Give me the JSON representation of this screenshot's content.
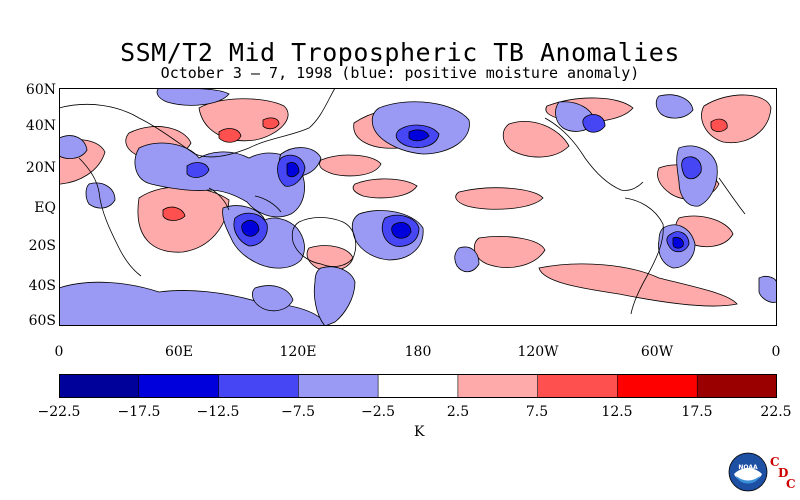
{
  "title": "SSM/T2 Mid Tropospheric TB Anomalies",
  "subtitle": "October 3 – 7, 1998 (blue: positive moisture anomaly)",
  "lat_labels": [
    "60N",
    "40N",
    "20N",
    "EQ",
    "20S",
    "40S",
    "60S"
  ],
  "lon_labels": [
    "0",
    "60E",
    "120E",
    "180",
    "120W",
    "60W",
    "0"
  ],
  "colorbar": {
    "tick_labels": [
      "−22.5",
      "−17.5",
      "−12.5",
      "−7.5",
      "−2.5",
      "2.5",
      "7.5",
      "12.5",
      "17.5",
      "22.5"
    ],
    "unit": "K",
    "colors": [
      "#00009a",
      "#0000dc",
      "#4646f5",
      "#9a9af5",
      "#ffffff",
      "#ffaaaa",
      "#ff5050",
      "#ff0000",
      "#9b0000"
    ]
  },
  "logo": {
    "text": "NOAA",
    "letters": [
      "C",
      "D",
      "C"
    ]
  },
  "colors": {
    "positive_moisture": "#9a9af5",
    "negative_moisture": "#ffaaaa",
    "land_outline": "#000000"
  }
}
